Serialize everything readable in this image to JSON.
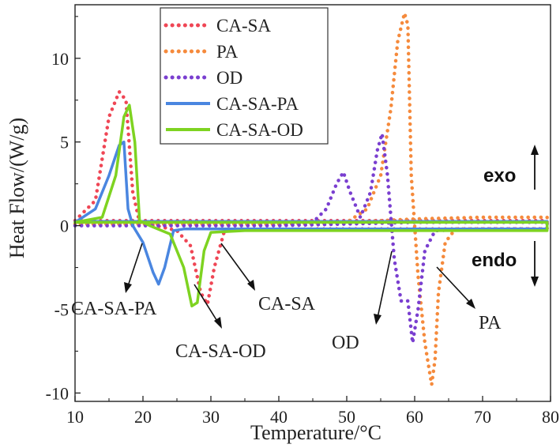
{
  "chart_data": {
    "type": "line",
    "title": "",
    "xlabel": "Temperature/°C",
    "ylabel": "Heat Flow/(W/g)",
    "xlim": [
      10,
      80
    ],
    "ylim": [
      -10.5,
      13.2
    ],
    "x_ticks": [
      10,
      20,
      30,
      40,
      50,
      60,
      70,
      80
    ],
    "y_ticks": [
      -10,
      -5,
      0,
      5,
      10
    ],
    "grid": false,
    "legend_position": "top-left",
    "series": [
      {
        "name": "CA-SA",
        "color": "#ef4655",
        "style": "dotted",
        "x": [
          10,
          13,
          15,
          16.5,
          17.5,
          18.5,
          19.5,
          22,
          25,
          27,
          28.5,
          29.5,
          30.5,
          32,
          35,
          45,
          55,
          65,
          79.5,
          79.5,
          70,
          60,
          50,
          40,
          30,
          20,
          10
        ],
        "y": [
          0.3,
          1.5,
          6.5,
          8,
          7.5,
          2,
          0.2,
          0,
          -0.3,
          -1.2,
          -4,
          -4.7,
          -2.5,
          -0.3,
          -0.25,
          -0.2,
          -0.2,
          -0.2,
          -0.2,
          0.3,
          0.3,
          0.3,
          0.3,
          0.3,
          0.3,
          0.3,
          0.3
        ]
      },
      {
        "name": "PA",
        "color": "#f58a3c",
        "style": "dotted",
        "x": [
          10,
          20,
          30,
          40,
          50,
          53,
          55,
          56.5,
          57.5,
          58.5,
          59,
          59.5,
          60.5,
          61.5,
          62.5,
          63,
          63.5,
          64.5,
          66,
          70,
          79.5,
          79.5,
          70,
          60,
          50,
          40,
          30,
          20,
          10
        ],
        "y": [
          0.1,
          0.1,
          0.1,
          0.1,
          0.2,
          1,
          3,
          7,
          11,
          12.7,
          12,
          3,
          -3,
          -7,
          -9.5,
          -8,
          -4,
          -1,
          -0.2,
          -0.2,
          -0.2,
          0.5,
          0.5,
          0.4,
          0.2,
          0.1,
          0.1,
          0.1,
          0.1
        ]
      },
      {
        "name": "OD",
        "color": "#7a3fd0",
        "style": "dotted",
        "x": [
          10,
          20,
          30,
          40,
          45,
          47,
          48.5,
          49.5,
          50.5,
          52,
          53.5,
          54.5,
          55.2,
          56,
          57,
          58,
          59,
          59.7,
          60.5,
          61.5,
          63,
          70,
          79.5,
          79.5,
          70,
          60,
          50,
          40,
          30,
          20,
          10
        ],
        "y": [
          0,
          0,
          0,
          0,
          0.2,
          1,
          2.5,
          3.2,
          2,
          0.5,
          2,
          4.5,
          5.5,
          3,
          -2,
          -4.5,
          -4.5,
          -7,
          -5,
          -1.5,
          -0.3,
          -0.2,
          -0.2,
          0.2,
          0.2,
          0.2,
          0.1,
          0,
          0,
          0,
          0
        ]
      },
      {
        "name": "CA-SA-PA",
        "color": "#4a86e0",
        "style": "solid",
        "x": [
          10,
          13,
          15,
          16.5,
          17.2,
          17.8,
          18.5,
          20,
          21.5,
          22.3,
          23.2,
          24.5,
          26,
          30,
          40,
          50,
          60,
          70,
          79.5,
          79.5,
          70,
          60,
          50,
          40,
          30,
          20,
          10
        ],
        "y": [
          0.2,
          1,
          3,
          4.8,
          5,
          1,
          0,
          -1,
          -2.8,
          -3.5,
          -2.5,
          -0.3,
          -0.2,
          -0.2,
          -0.2,
          -0.2,
          -0.2,
          -0.2,
          -0.2,
          0.25,
          0.25,
          0.25,
          0.25,
          0.25,
          0.25,
          0.25,
          0.25
        ]
      },
      {
        "name": "CA-SA-OD",
        "color": "#7ed321",
        "style": "solid",
        "x": [
          10,
          14,
          16,
          17.2,
          18,
          18.8,
          19.5,
          21,
          24,
          26,
          27.2,
          28,
          29,
          30,
          35,
          50,
          65,
          79.5,
          79.5,
          70,
          60,
          50,
          40,
          30,
          20,
          10
        ],
        "y": [
          0.2,
          0.5,
          3,
          6.5,
          7.2,
          5,
          0.3,
          0,
          -0.5,
          -2.5,
          -4.8,
          -4.6,
          -1.5,
          -0.4,
          -0.3,
          -0.3,
          -0.3,
          -0.3,
          0.2,
          0.2,
          0.2,
          0.2,
          0.2,
          0.2,
          0.2,
          0.2
        ]
      }
    ],
    "annotations": [
      {
        "text": "CA-SA-PA"
      },
      {
        "text": "CA-SA-OD"
      },
      {
        "text": "CA-SA"
      },
      {
        "text": "OD"
      },
      {
        "text": "PA"
      },
      {
        "text": "exo"
      },
      {
        "text": "endo"
      }
    ]
  }
}
